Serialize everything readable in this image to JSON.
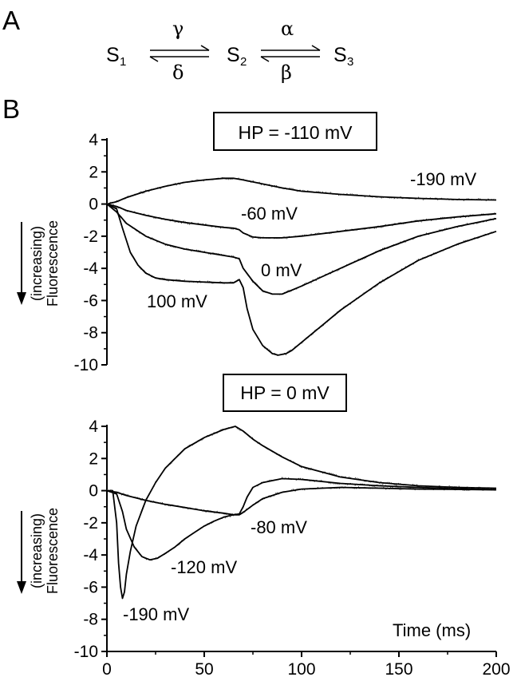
{
  "panel_a": {
    "label": "A",
    "states": [
      {
        "base": "S",
        "sub": "1"
      },
      {
        "base": "S",
        "sub": "2"
      },
      {
        "base": "S",
        "sub": "3"
      }
    ],
    "rates": {
      "gamma": "γ",
      "delta": "δ",
      "alpha": "α",
      "beta": "β"
    }
  },
  "panel_b": {
    "label": "B",
    "y_label_line1": "(increasing)",
    "y_label_line2": "Fluorescence",
    "x_label": "Time (ms)"
  },
  "chart_data": [
    {
      "type": "line",
      "title": "HP = -110 mV",
      "xlim": [
        0,
        200
      ],
      "ylim": [
        -10,
        4
      ],
      "x_ticks": [],
      "y_ticks": [
        4,
        2,
        0,
        -2,
        -4,
        -6,
        -8,
        -10
      ],
      "series": [
        {
          "name": "-190 mV",
          "x": [
            0,
            5,
            10,
            20,
            30,
            40,
            50,
            60,
            65,
            70,
            80,
            90,
            100,
            120,
            140,
            160,
            180,
            200
          ],
          "y": [
            0,
            0.15,
            0.4,
            0.8,
            1.1,
            1.35,
            1.5,
            1.6,
            1.6,
            1.5,
            1.25,
            1.0,
            0.8,
            0.6,
            0.45,
            0.35,
            0.28,
            0.25
          ]
        },
        {
          "name": "-60 mV",
          "x": [
            0,
            5,
            10,
            20,
            30,
            40,
            50,
            60,
            65,
            68,
            70,
            75,
            80,
            90,
            100,
            120,
            140,
            160,
            180,
            200
          ],
          "y": [
            0,
            -0.15,
            -0.4,
            -0.7,
            -0.95,
            -1.15,
            -1.3,
            -1.45,
            -1.5,
            -1.6,
            -1.8,
            -2.05,
            -2.1,
            -2.1,
            -2.0,
            -1.7,
            -1.4,
            -1.05,
            -0.8,
            -0.6
          ]
        },
        {
          "name": "0 mV",
          "x": [
            0,
            5,
            10,
            20,
            30,
            40,
            50,
            60,
            65,
            68,
            70,
            75,
            80,
            85,
            90,
            100,
            120,
            140,
            160,
            180,
            200
          ],
          "y": [
            0,
            -0.5,
            -1.2,
            -2.0,
            -2.5,
            -2.8,
            -3.0,
            -3.2,
            -3.3,
            -3.4,
            -4.0,
            -4.8,
            -5.4,
            -5.6,
            -5.6,
            -5.1,
            -4.0,
            -2.9,
            -2.0,
            -1.4,
            -0.9
          ]
        },
        {
          "name": "100 mV",
          "x": [
            0,
            5,
            8,
            12,
            16,
            20,
            25,
            30,
            40,
            50,
            60,
            65,
            68,
            70,
            72,
            75,
            80,
            85,
            88,
            92,
            95,
            100,
            110,
            120,
            140,
            160,
            180,
            200
          ],
          "y": [
            0,
            -0.3,
            -1.5,
            -3.0,
            -3.8,
            -4.3,
            -4.6,
            -4.7,
            -4.8,
            -4.85,
            -4.9,
            -4.9,
            -4.7,
            -5.2,
            -6.5,
            -7.8,
            -8.8,
            -9.3,
            -9.4,
            -9.3,
            -9.1,
            -8.6,
            -7.6,
            -6.6,
            -4.9,
            -3.5,
            -2.5,
            -1.7
          ]
        }
      ]
    },
    {
      "type": "line",
      "title": "HP = 0 mV",
      "xlim": [
        0,
        200
      ],
      "ylim": [
        -10,
        4
      ],
      "x_ticks": [
        0,
        50,
        100,
        150,
        200
      ],
      "y_ticks": [
        4,
        2,
        0,
        -2,
        -4,
        -6,
        -8,
        -10
      ],
      "xlabel": "Time (ms)",
      "series": [
        {
          "name": "-190 mV",
          "x": [
            0,
            3,
            5,
            6,
            7,
            8,
            9,
            10,
            12,
            15,
            20,
            25,
            30,
            40,
            50,
            60,
            66,
            70,
            75,
            80,
            90,
            100,
            120,
            140,
            160,
            180,
            200
          ],
          "y": [
            0,
            0,
            -2.0,
            -4.5,
            -6.0,
            -6.7,
            -6.3,
            -5.2,
            -3.8,
            -2.2,
            -0.6,
            0.5,
            1.4,
            2.6,
            3.3,
            3.8,
            4.0,
            3.7,
            3.2,
            2.8,
            2.1,
            1.5,
            0.85,
            0.5,
            0.3,
            0.2,
            0.15
          ]
        },
        {
          "name": "-120 mV",
          "x": [
            0,
            5,
            8,
            10,
            14,
            18,
            22,
            26,
            30,
            35,
            40,
            45,
            50,
            55,
            60,
            65,
            68,
            70,
            72,
            75,
            80,
            90,
            100,
            120,
            140,
            160,
            180,
            200
          ],
          "y": [
            0,
            -0.2,
            -1.3,
            -2.4,
            -3.5,
            -4.1,
            -4.3,
            -4.2,
            -3.9,
            -3.5,
            -3.0,
            -2.6,
            -2.2,
            -1.9,
            -1.65,
            -1.5,
            -1.45,
            -1.0,
            -0.4,
            0.2,
            0.5,
            0.75,
            0.7,
            0.45,
            0.3,
            0.2,
            0.12,
            0.08
          ]
        },
        {
          "name": "-80 mV",
          "x": [
            0,
            5,
            10,
            20,
            30,
            40,
            50,
            60,
            65,
            68,
            70,
            75,
            80,
            90,
            100,
            120,
            140,
            160,
            180,
            200
          ],
          "y": [
            0,
            -0.1,
            -0.3,
            -0.6,
            -0.85,
            -1.05,
            -1.25,
            -1.4,
            -1.5,
            -1.5,
            -1.35,
            -0.9,
            -0.5,
            -0.1,
            0.1,
            0.2,
            0.15,
            0.1,
            0.08,
            0.05
          ]
        }
      ]
    }
  ]
}
